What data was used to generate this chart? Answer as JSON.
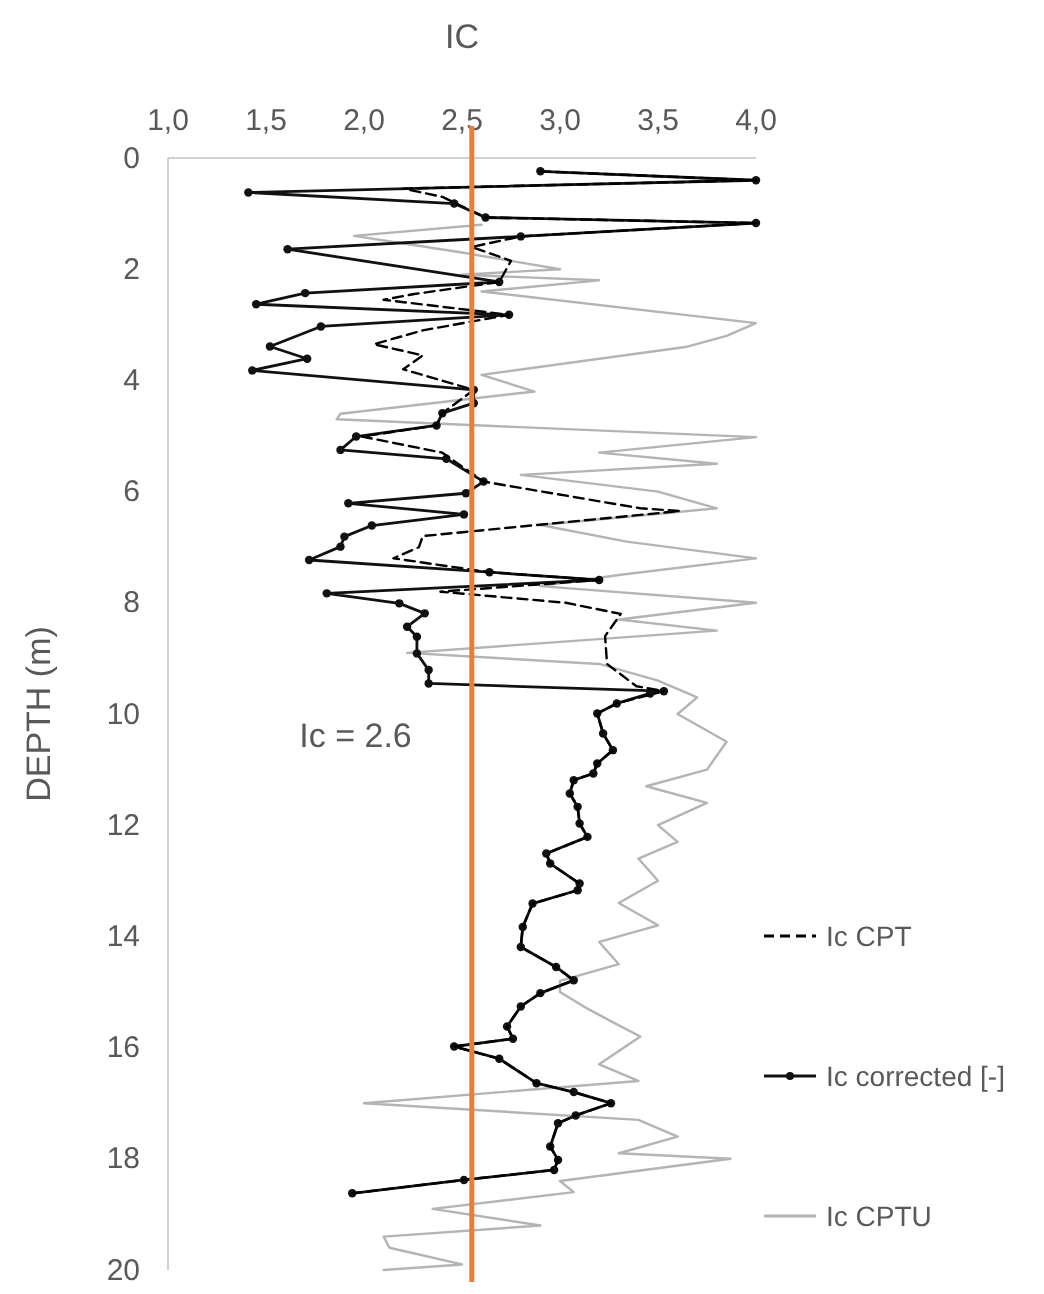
{
  "chart_data": {
    "type": "line",
    "xlabel": "IC",
    "ylabel": "DEPTH (m)",
    "xlim": [
      1,
      4
    ],
    "xticks": [
      {
        "value": 1,
        "label": "1,0"
      },
      {
        "value": 1.5,
        "label": "1,5"
      },
      {
        "value": 2,
        "label": "2,0"
      },
      {
        "value": 2.5,
        "label": "2,5"
      },
      {
        "value": 3,
        "label": "3,0"
      },
      {
        "value": 3.5,
        "label": "3,5"
      },
      {
        "value": 4,
        "label": "4,0"
      }
    ],
    "ylim": [
      20,
      0
    ],
    "yticks": [
      0,
      2,
      4,
      6,
      8,
      10,
      12,
      14,
      16,
      18,
      20
    ],
    "grid": false,
    "legend": "right",
    "ref_lines": [
      {
        "axis": "x",
        "value": 2.55,
        "label": "Ic = 2.6",
        "color": "#ed7d31"
      }
    ],
    "series": [
      {
        "name": "Ic CPT",
        "color": "#000000",
        "line_style": "dashed",
        "marker": "none",
        "x": [
          2.9,
          4.0,
          2.2,
          2.4,
          2.62,
          4.0,
          2.8,
          2.55,
          2.75,
          2.69,
          2.25,
          2.1,
          2.74,
          2.3,
          2.05,
          2.3,
          2.2,
          2.56,
          2.4,
          2.37,
          1.99,
          2.4,
          2.61,
          3.41,
          3.61,
          2.3,
          2.28,
          2.15,
          2.64,
          3.2,
          2.39,
          3.03,
          3.31,
          3.23,
          3.24,
          3.39,
          3.53,
          3.29,
          3.19,
          3.22,
          3.27,
          3.19,
          3.17,
          3.07,
          3.05,
          3.09,
          3.1,
          3.14,
          2.93,
          2.95,
          3.1,
          3.09,
          2.86,
          2.81,
          2.8,
          2.98,
          3.07,
          2.9,
          2.8,
          2.73,
          2.76,
          2.46,
          2.69,
          2.88,
          3.07,
          3.26,
          3.08,
          2.99,
          2.95,
          2.99,
          2.97,
          2.51,
          1.94
        ],
        "values": [
          0.24,
          0.4,
          0.55,
          0.7,
          1.07,
          1.17,
          1.41,
          1.6,
          1.85,
          2.23,
          2.45,
          2.55,
          2.82,
          3.1,
          3.35,
          3.55,
          3.8,
          4.17,
          4.59,
          4.81,
          5.01,
          5.3,
          5.82,
          6.3,
          6.35,
          6.8,
          7.0,
          7.2,
          7.45,
          7.59,
          7.8,
          8.0,
          8.2,
          8.6,
          9.1,
          9.5,
          9.59,
          9.81,
          9.99,
          10.35,
          10.65,
          10.89,
          11.07,
          11.19,
          11.43,
          11.67,
          11.97,
          12.21,
          12.51,
          12.69,
          13.05,
          13.17,
          13.41,
          13.83,
          14.19,
          14.55,
          14.79,
          15.02,
          15.26,
          15.62,
          15.84,
          15.98,
          16.2,
          16.64,
          16.8,
          17.0,
          17.22,
          17.36,
          17.78,
          18.02,
          18.2,
          18.38,
          18.62
        ]
      },
      {
        "name": "Ic corrected [-]",
        "color": "#111111",
        "line_style": "solid",
        "marker": "circle",
        "x": [
          2.9,
          4.0,
          1.41,
          2.46,
          2.62,
          4.0,
          2.8,
          1.61,
          2.69,
          1.7,
          1.45,
          2.74,
          1.78,
          1.52,
          1.71,
          1.43,
          2.56,
          2.56,
          2.4,
          2.37,
          1.96,
          1.88,
          2.42,
          2.61,
          2.52,
          1.92,
          2.51,
          2.04,
          1.9,
          1.88,
          1.72,
          2.64,
          3.2,
          1.81,
          2.18,
          2.31,
          2.22,
          2.27,
          2.27,
          2.33,
          2.33,
          3.53,
          3.46,
          3.29,
          3.19,
          3.22,
          3.27,
          3.19,
          3.17,
          3.07,
          3.05,
          3.09,
          3.1,
          3.14,
          2.93,
          2.95,
          3.1,
          3.09,
          2.86,
          2.81,
          2.8,
          2.98,
          3.07,
          2.9,
          2.8,
          2.73,
          2.76,
          2.46,
          2.69,
          2.88,
          3.07,
          3.26,
          3.08,
          2.99,
          2.95,
          2.99,
          2.97,
          2.51,
          1.94
        ],
        "values": [
          0.24,
          0.4,
          0.62,
          0.82,
          1.07,
          1.17,
          1.41,
          1.64,
          2.23,
          2.43,
          2.63,
          2.82,
          3.03,
          3.39,
          3.61,
          3.82,
          4.17,
          4.41,
          4.59,
          4.81,
          5.01,
          5.25,
          5.41,
          5.82,
          6.03,
          6.21,
          6.41,
          6.61,
          6.81,
          6.99,
          7.23,
          7.45,
          7.59,
          7.83,
          8.01,
          8.19,
          8.43,
          8.61,
          8.91,
          9.21,
          9.45,
          9.59,
          9.63,
          9.81,
          9.99,
          10.35,
          10.65,
          10.89,
          11.07,
          11.19,
          11.43,
          11.67,
          11.97,
          12.21,
          12.51,
          12.69,
          13.05,
          13.17,
          13.41,
          13.83,
          14.19,
          14.55,
          14.79,
          15.02,
          15.26,
          15.62,
          15.84,
          15.98,
          16.2,
          16.64,
          16.8,
          17.0,
          17.22,
          17.36,
          17.78,
          18.02,
          18.2,
          18.38,
          18.62
        ]
      },
      {
        "name": "Ic CPTU",
        "color": "#b4b4b4",
        "line_style": "solid",
        "marker": "none",
        "x": [
          2.6,
          1.95,
          2.5,
          3.0,
          2.5,
          3.2,
          2.6,
          4.0,
          3.85,
          3.64,
          2.6,
          2.87,
          1.88,
          1.86,
          4.0,
          3.2,
          3.8,
          2.8,
          3.5,
          3.8,
          2.9,
          3.34,
          4.0,
          3.3,
          2.9,
          4.0,
          3.3,
          3.8,
          2.22,
          3.2,
          3.5,
          3.7,
          3.6,
          3.85,
          3.75,
          3.44,
          3.75,
          3.5,
          3.6,
          3.4,
          3.5,
          3.3,
          3.5,
          3.2,
          3.3,
          3.0,
          3.0,
          3.14,
          3.3,
          3.41,
          3.2,
          3.4,
          2.0,
          3.4,
          3.6,
          3.3,
          3.87,
          3.0,
          3.07,
          2.35,
          2.9,
          2.1,
          2.13,
          2.5,
          2.1
        ],
        "values": [
          1.2,
          1.4,
          1.7,
          2.0,
          2.1,
          2.2,
          2.4,
          2.97,
          3.2,
          3.4,
          3.9,
          4.2,
          4.6,
          4.7,
          5.02,
          5.3,
          5.5,
          5.7,
          6.0,
          6.3,
          6.6,
          6.9,
          7.2,
          7.5,
          7.7,
          8.0,
          8.3,
          8.5,
          8.9,
          9.1,
          9.4,
          9.7,
          10.0,
          10.5,
          11.0,
          11.3,
          11.6,
          12.0,
          12.3,
          12.6,
          13.0,
          13.4,
          13.8,
          14.1,
          14.5,
          14.8,
          15.0,
          15.3,
          15.6,
          15.8,
          16.3,
          16.6,
          17.0,
          17.3,
          17.6,
          17.9,
          18.0,
          18.4,
          18.6,
          18.9,
          19.2,
          19.4,
          19.6,
          19.9,
          20.0
        ]
      }
    ]
  }
}
